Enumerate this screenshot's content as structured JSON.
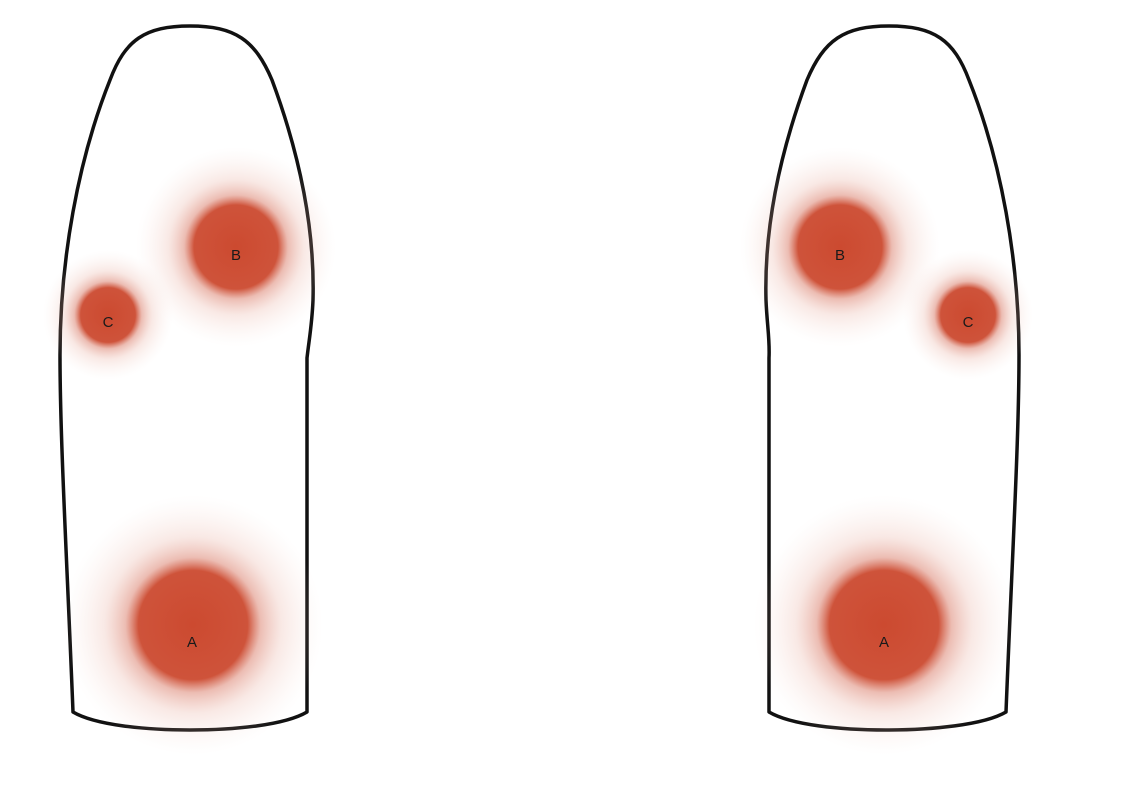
{
  "colors": {
    "spot": "#cc4a30",
    "outline": "#111111",
    "background": "#ffffff"
  },
  "left_finger": {
    "spots": [
      {
        "label": "A",
        "size": "large"
      },
      {
        "label": "B",
        "size": "medium"
      },
      {
        "label": "C",
        "size": "small"
      }
    ]
  },
  "right_finger": {
    "spots": [
      {
        "label": "A",
        "size": "large"
      },
      {
        "label": "B",
        "size": "medium"
      },
      {
        "label": "C",
        "size": "small"
      }
    ]
  }
}
